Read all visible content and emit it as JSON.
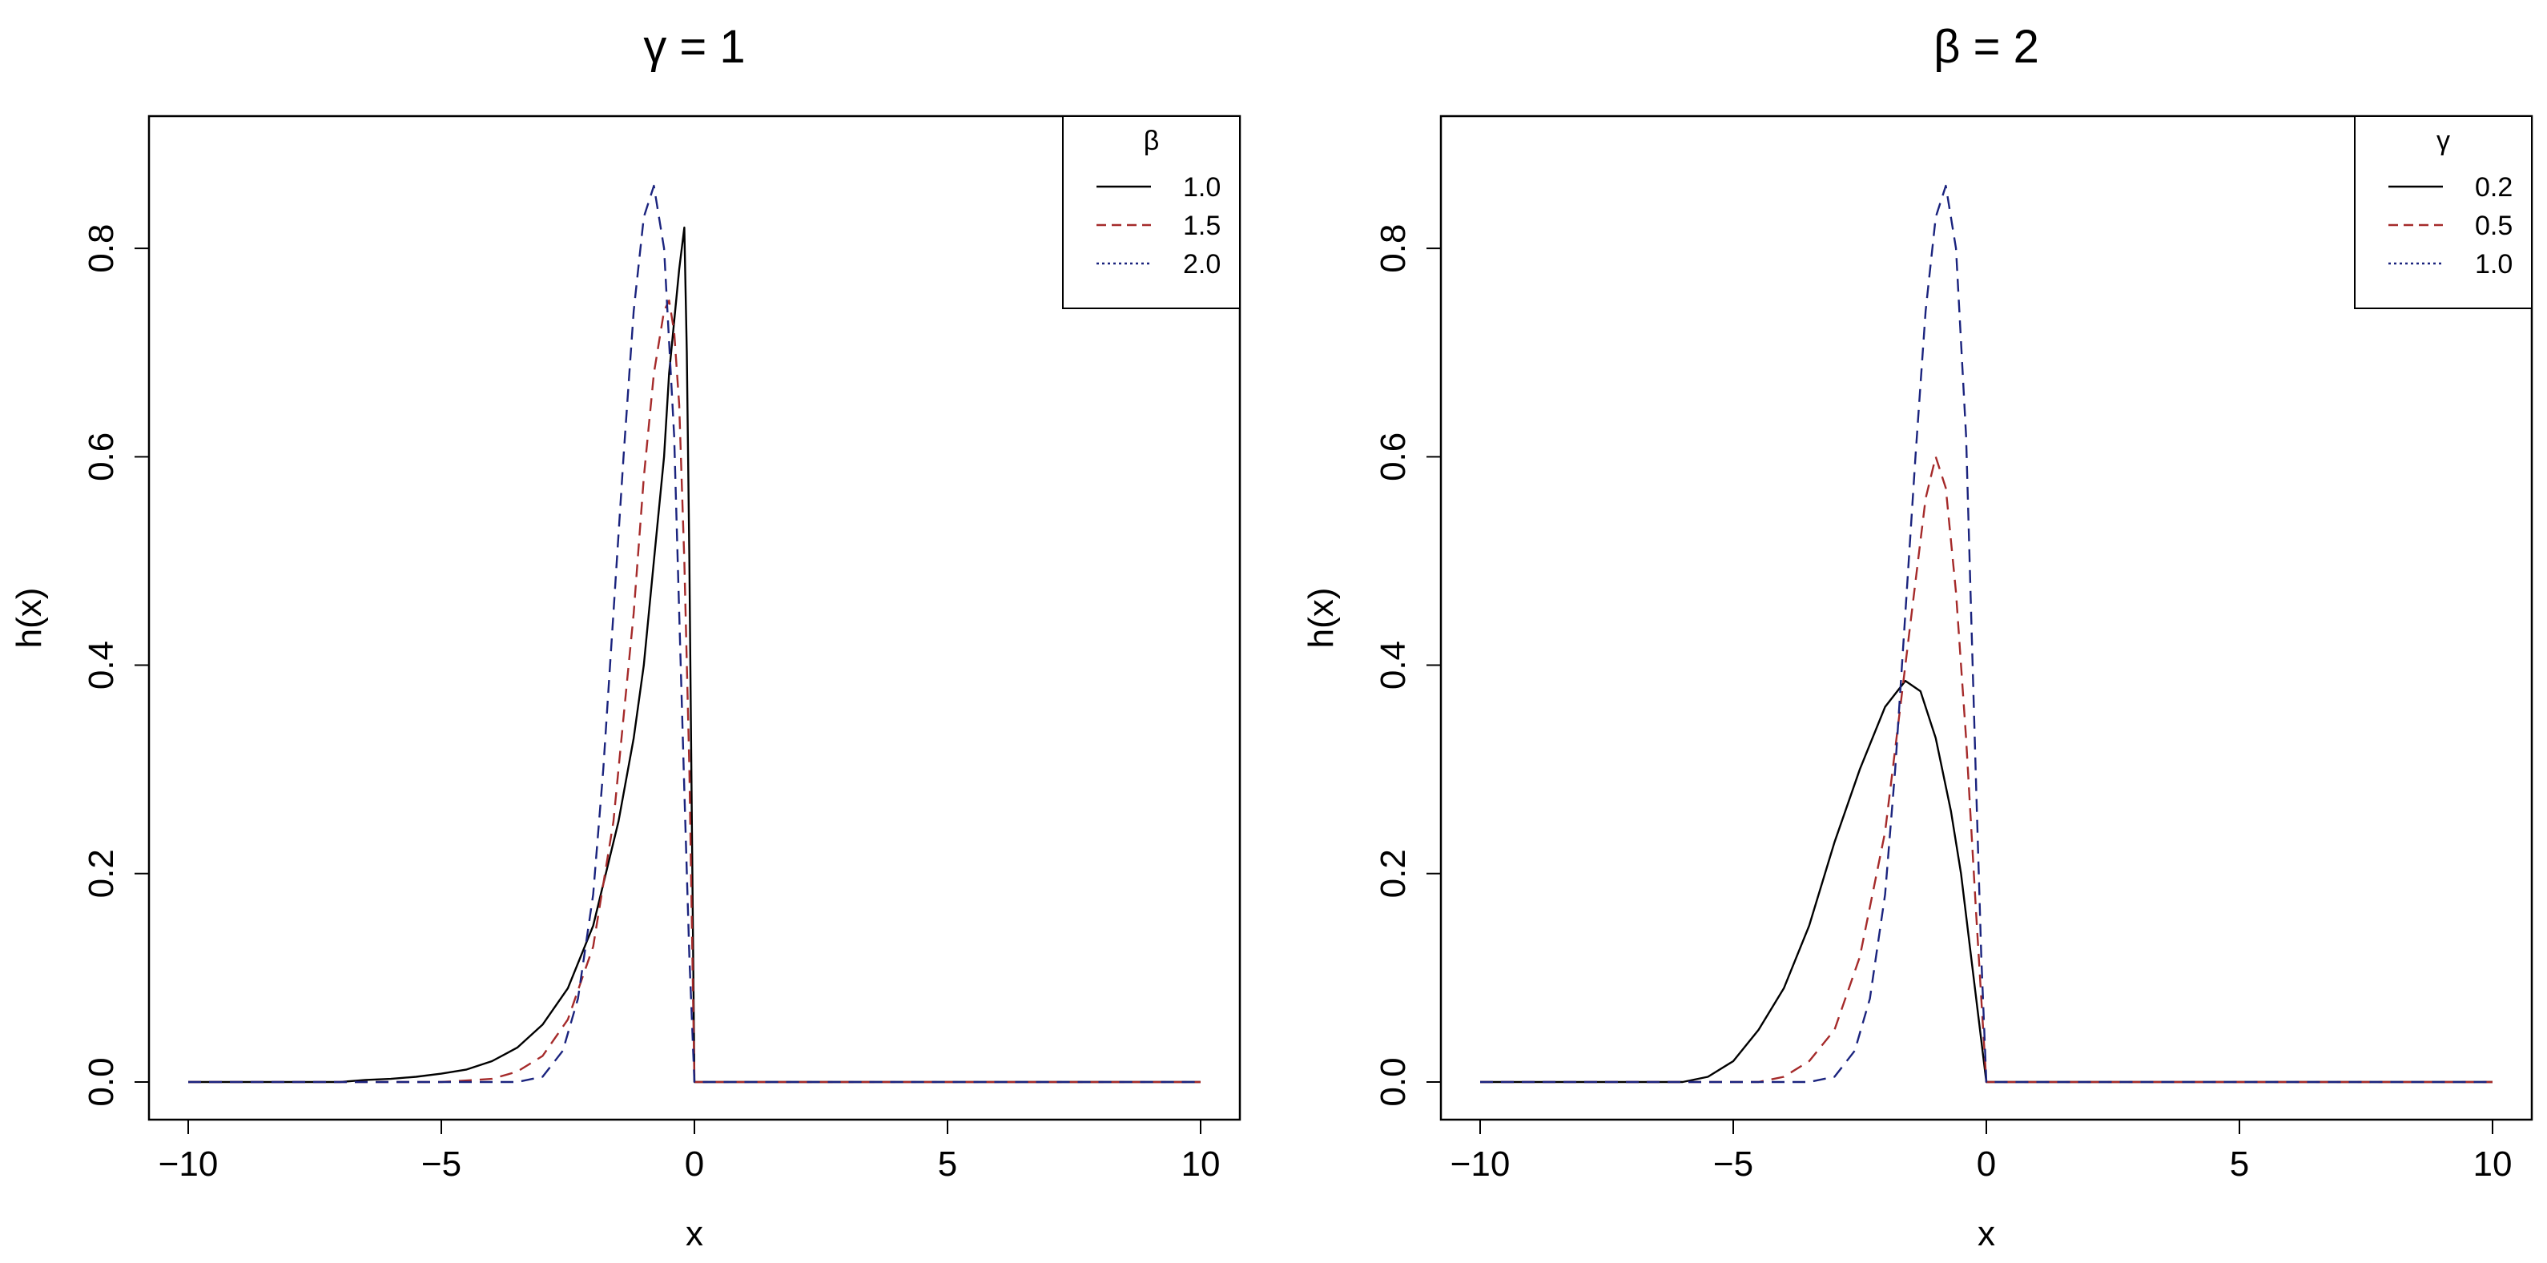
{
  "chart_data": [
    {
      "type": "line",
      "title": "γ = 1",
      "xlabel": "x",
      "ylabel": "h(x)",
      "xlim": [
        -10,
        10
      ],
      "ylim": [
        0,
        0.9
      ],
      "xticks": [
        -10,
        -5,
        0,
        5,
        10
      ],
      "xtick_labels": [
        "−10",
        "−5",
        "0",
        "5",
        "10"
      ],
      "yticks": [
        0,
        0.2,
        0.4,
        0.6,
        0.8
      ],
      "ytick_labels": [
        "0.0",
        "0.2",
        "0.4",
        "0.6",
        "0.8"
      ],
      "grid": false,
      "legend": {
        "title": "β",
        "position": "top-right",
        "entries": [
          "1.0",
          "1.5",
          "2.0"
        ]
      },
      "series": [
        {
          "name": "1.0",
          "color": "#000000",
          "dash": "solid",
          "points": [
            [
              -10,
              0
            ],
            [
              -7,
              0
            ],
            [
              -6.5,
              0.002
            ],
            [
              -6,
              0.003
            ],
            [
              -5.5,
              0.005
            ],
            [
              -5,
              0.008
            ],
            [
              -4.5,
              0.012
            ],
            [
              -4,
              0.02
            ],
            [
              -3.5,
              0.033
            ],
            [
              -3,
              0.055
            ],
            [
              -2.5,
              0.09
            ],
            [
              -2,
              0.15
            ],
            [
              -1.5,
              0.25
            ],
            [
              -1.2,
              0.33
            ],
            [
              -1,
              0.4
            ],
            [
              -0.8,
              0.5
            ],
            [
              -0.6,
              0.6
            ],
            [
              -0.5,
              0.68
            ],
            [
              -0.4,
              0.73
            ],
            [
              -0.3,
              0.78
            ],
            [
              -0.2,
              0.82
            ],
            [
              -0.15,
              0.7
            ],
            [
              -0.1,
              0.5
            ],
            [
              -0.05,
              0.25
            ],
            [
              0,
              0
            ],
            [
              10,
              0
            ]
          ]
        },
        {
          "name": "1.5",
          "color": "#a52a2a",
          "dash": "dashed",
          "points": [
            [
              -10,
              0
            ],
            [
              -5,
              0
            ],
            [
              -4,
              0.003
            ],
            [
              -3.5,
              0.01
            ],
            [
              -3,
              0.025
            ],
            [
              -2.5,
              0.06
            ],
            [
              -2,
              0.13
            ],
            [
              -1.6,
              0.25
            ],
            [
              -1.4,
              0.35
            ],
            [
              -1.2,
              0.45
            ],
            [
              -1,
              0.58
            ],
            [
              -0.8,
              0.68
            ],
            [
              -0.6,
              0.74
            ],
            [
              -0.5,
              0.75
            ],
            [
              -0.4,
              0.72
            ],
            [
              -0.3,
              0.65
            ],
            [
              -0.2,
              0.5
            ],
            [
              -0.1,
              0.3
            ],
            [
              0,
              0
            ],
            [
              10,
              0
            ]
          ]
        },
        {
          "name": "2.0",
          "color": "#1a237e",
          "dash": "dotted",
          "points": [
            [
              -10,
              0
            ],
            [
              -3.5,
              0
            ],
            [
              -3,
              0.005
            ],
            [
              -2.6,
              0.03
            ],
            [
              -2.3,
              0.08
            ],
            [
              -2,
              0.18
            ],
            [
              -1.8,
              0.3
            ],
            [
              -1.6,
              0.45
            ],
            [
              -1.4,
              0.6
            ],
            [
              -1.2,
              0.74
            ],
            [
              -1,
              0.83
            ],
            [
              -0.8,
              0.86
            ],
            [
              -0.6,
              0.8
            ],
            [
              -0.4,
              0.62
            ],
            [
              -0.3,
              0.45
            ],
            [
              -0.2,
              0.28
            ],
            [
              -0.1,
              0.12
            ],
            [
              0,
              0
            ],
            [
              10,
              0
            ]
          ]
        }
      ]
    },
    {
      "type": "line",
      "title": "β = 2",
      "xlabel": "x",
      "ylabel": "h(x)",
      "xlim": [
        -10,
        10
      ],
      "ylim": [
        0,
        0.9
      ],
      "xticks": [
        -10,
        -5,
        0,
        5,
        10
      ],
      "xtick_labels": [
        "−10",
        "−5",
        "0",
        "5",
        "10"
      ],
      "yticks": [
        0,
        0.2,
        0.4,
        0.6,
        0.8
      ],
      "ytick_labels": [
        "0.0",
        "0.2",
        "0.4",
        "0.6",
        "0.8"
      ],
      "grid": false,
      "legend": {
        "title": "γ",
        "position": "top-right",
        "entries": [
          "0.2",
          "0.5",
          "1.0"
        ]
      },
      "series": [
        {
          "name": "0.2",
          "color": "#000000",
          "dash": "solid",
          "points": [
            [
              -10,
              0
            ],
            [
              -6,
              0
            ],
            [
              -5.5,
              0.005
            ],
            [
              -5,
              0.02
            ],
            [
              -4.5,
              0.05
            ],
            [
              -4,
              0.09
            ],
            [
              -3.5,
              0.15
            ],
            [
              -3,
              0.23
            ],
            [
              -2.5,
              0.3
            ],
            [
              -2,
              0.36
            ],
            [
              -1.6,
              0.385
            ],
            [
              -1.3,
              0.375
            ],
            [
              -1,
              0.33
            ],
            [
              -0.7,
              0.26
            ],
            [
              -0.5,
              0.2
            ],
            [
              -0.3,
              0.12
            ],
            [
              -0.15,
              0.06
            ],
            [
              0,
              0
            ],
            [
              10,
              0
            ]
          ]
        },
        {
          "name": "0.5",
          "color": "#a52a2a",
          "dash": "dashed",
          "points": [
            [
              -10,
              0
            ],
            [
              -4.5,
              0
            ],
            [
              -4,
              0.005
            ],
            [
              -3.5,
              0.02
            ],
            [
              -3,
              0.05
            ],
            [
              -2.5,
              0.12
            ],
            [
              -2,
              0.24
            ],
            [
              -1.7,
              0.36
            ],
            [
              -1.4,
              0.48
            ],
            [
              -1.2,
              0.56
            ],
            [
              -1,
              0.6
            ],
            [
              -0.8,
              0.57
            ],
            [
              -0.6,
              0.47
            ],
            [
              -0.4,
              0.33
            ],
            [
              -0.2,
              0.16
            ],
            [
              0,
              0
            ],
            [
              10,
              0
            ]
          ]
        },
        {
          "name": "1.0",
          "color": "#1a237e",
          "dash": "dotted",
          "points": [
            [
              -10,
              0
            ],
            [
              -3.5,
              0
            ],
            [
              -3,
              0.005
            ],
            [
              -2.6,
              0.03
            ],
            [
              -2.3,
              0.08
            ],
            [
              -2,
              0.18
            ],
            [
              -1.8,
              0.3
            ],
            [
              -1.6,
              0.45
            ],
            [
              -1.4,
              0.6
            ],
            [
              -1.2,
              0.74
            ],
            [
              -1,
              0.83
            ],
            [
              -0.8,
              0.86
            ],
            [
              -0.6,
              0.8
            ],
            [
              -0.4,
              0.62
            ],
            [
              -0.3,
              0.45
            ],
            [
              -0.2,
              0.28
            ],
            [
              -0.1,
              0.12
            ],
            [
              0,
              0
            ],
            [
              10,
              0
            ]
          ]
        }
      ]
    }
  ]
}
